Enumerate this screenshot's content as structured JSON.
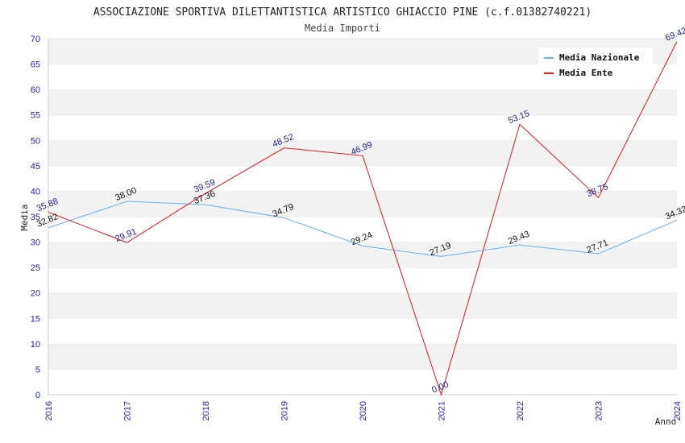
{
  "chart_data": {
    "type": "line",
    "title": "ASSOCIAZIONE SPORTIVA DILETTANTISTICA ARTISTICO GHIACCIO PINE (c.f.01382740221)",
    "subtitle": "Media Importi",
    "xlabel": "Anno",
    "ylabel": "Media",
    "ylim": [
      0,
      70
    ],
    "yticks": [
      "0",
      "5",
      "10",
      "15",
      "20",
      "25",
      "30",
      "35",
      "40",
      "45",
      "50",
      "55",
      "60",
      "65",
      "70"
    ],
    "x": [
      "2016",
      "2017",
      "2018",
      "2019",
      "2020",
      "2021",
      "2022",
      "2023",
      "2024"
    ],
    "grid": "horizontal bands",
    "legend_position": "top-right",
    "series": [
      {
        "name": "Media Nazionale",
        "color": "#6aaee6",
        "values": [
          32.82,
          38.0,
          37.36,
          34.79,
          29.24,
          27.19,
          29.43,
          27.71,
          34.32
        ],
        "labels": [
          "32.82",
          "38.00",
          "37.36",
          "34.79",
          "29.24",
          "27.19",
          "29.43",
          "27.71",
          "34.32"
        ]
      },
      {
        "name": "Media Ente",
        "color": "#e8141e",
        "values": [
          35.88,
          29.91,
          39.59,
          48.52,
          46.99,
          0.0,
          53.15,
          38.75,
          69.42
        ],
        "labels": [
          "35.88",
          "29.91",
          "39.59",
          "48.52",
          "46.99",
          "0.00",
          "53.15",
          "38.75",
          "69.42"
        ]
      }
    ]
  }
}
